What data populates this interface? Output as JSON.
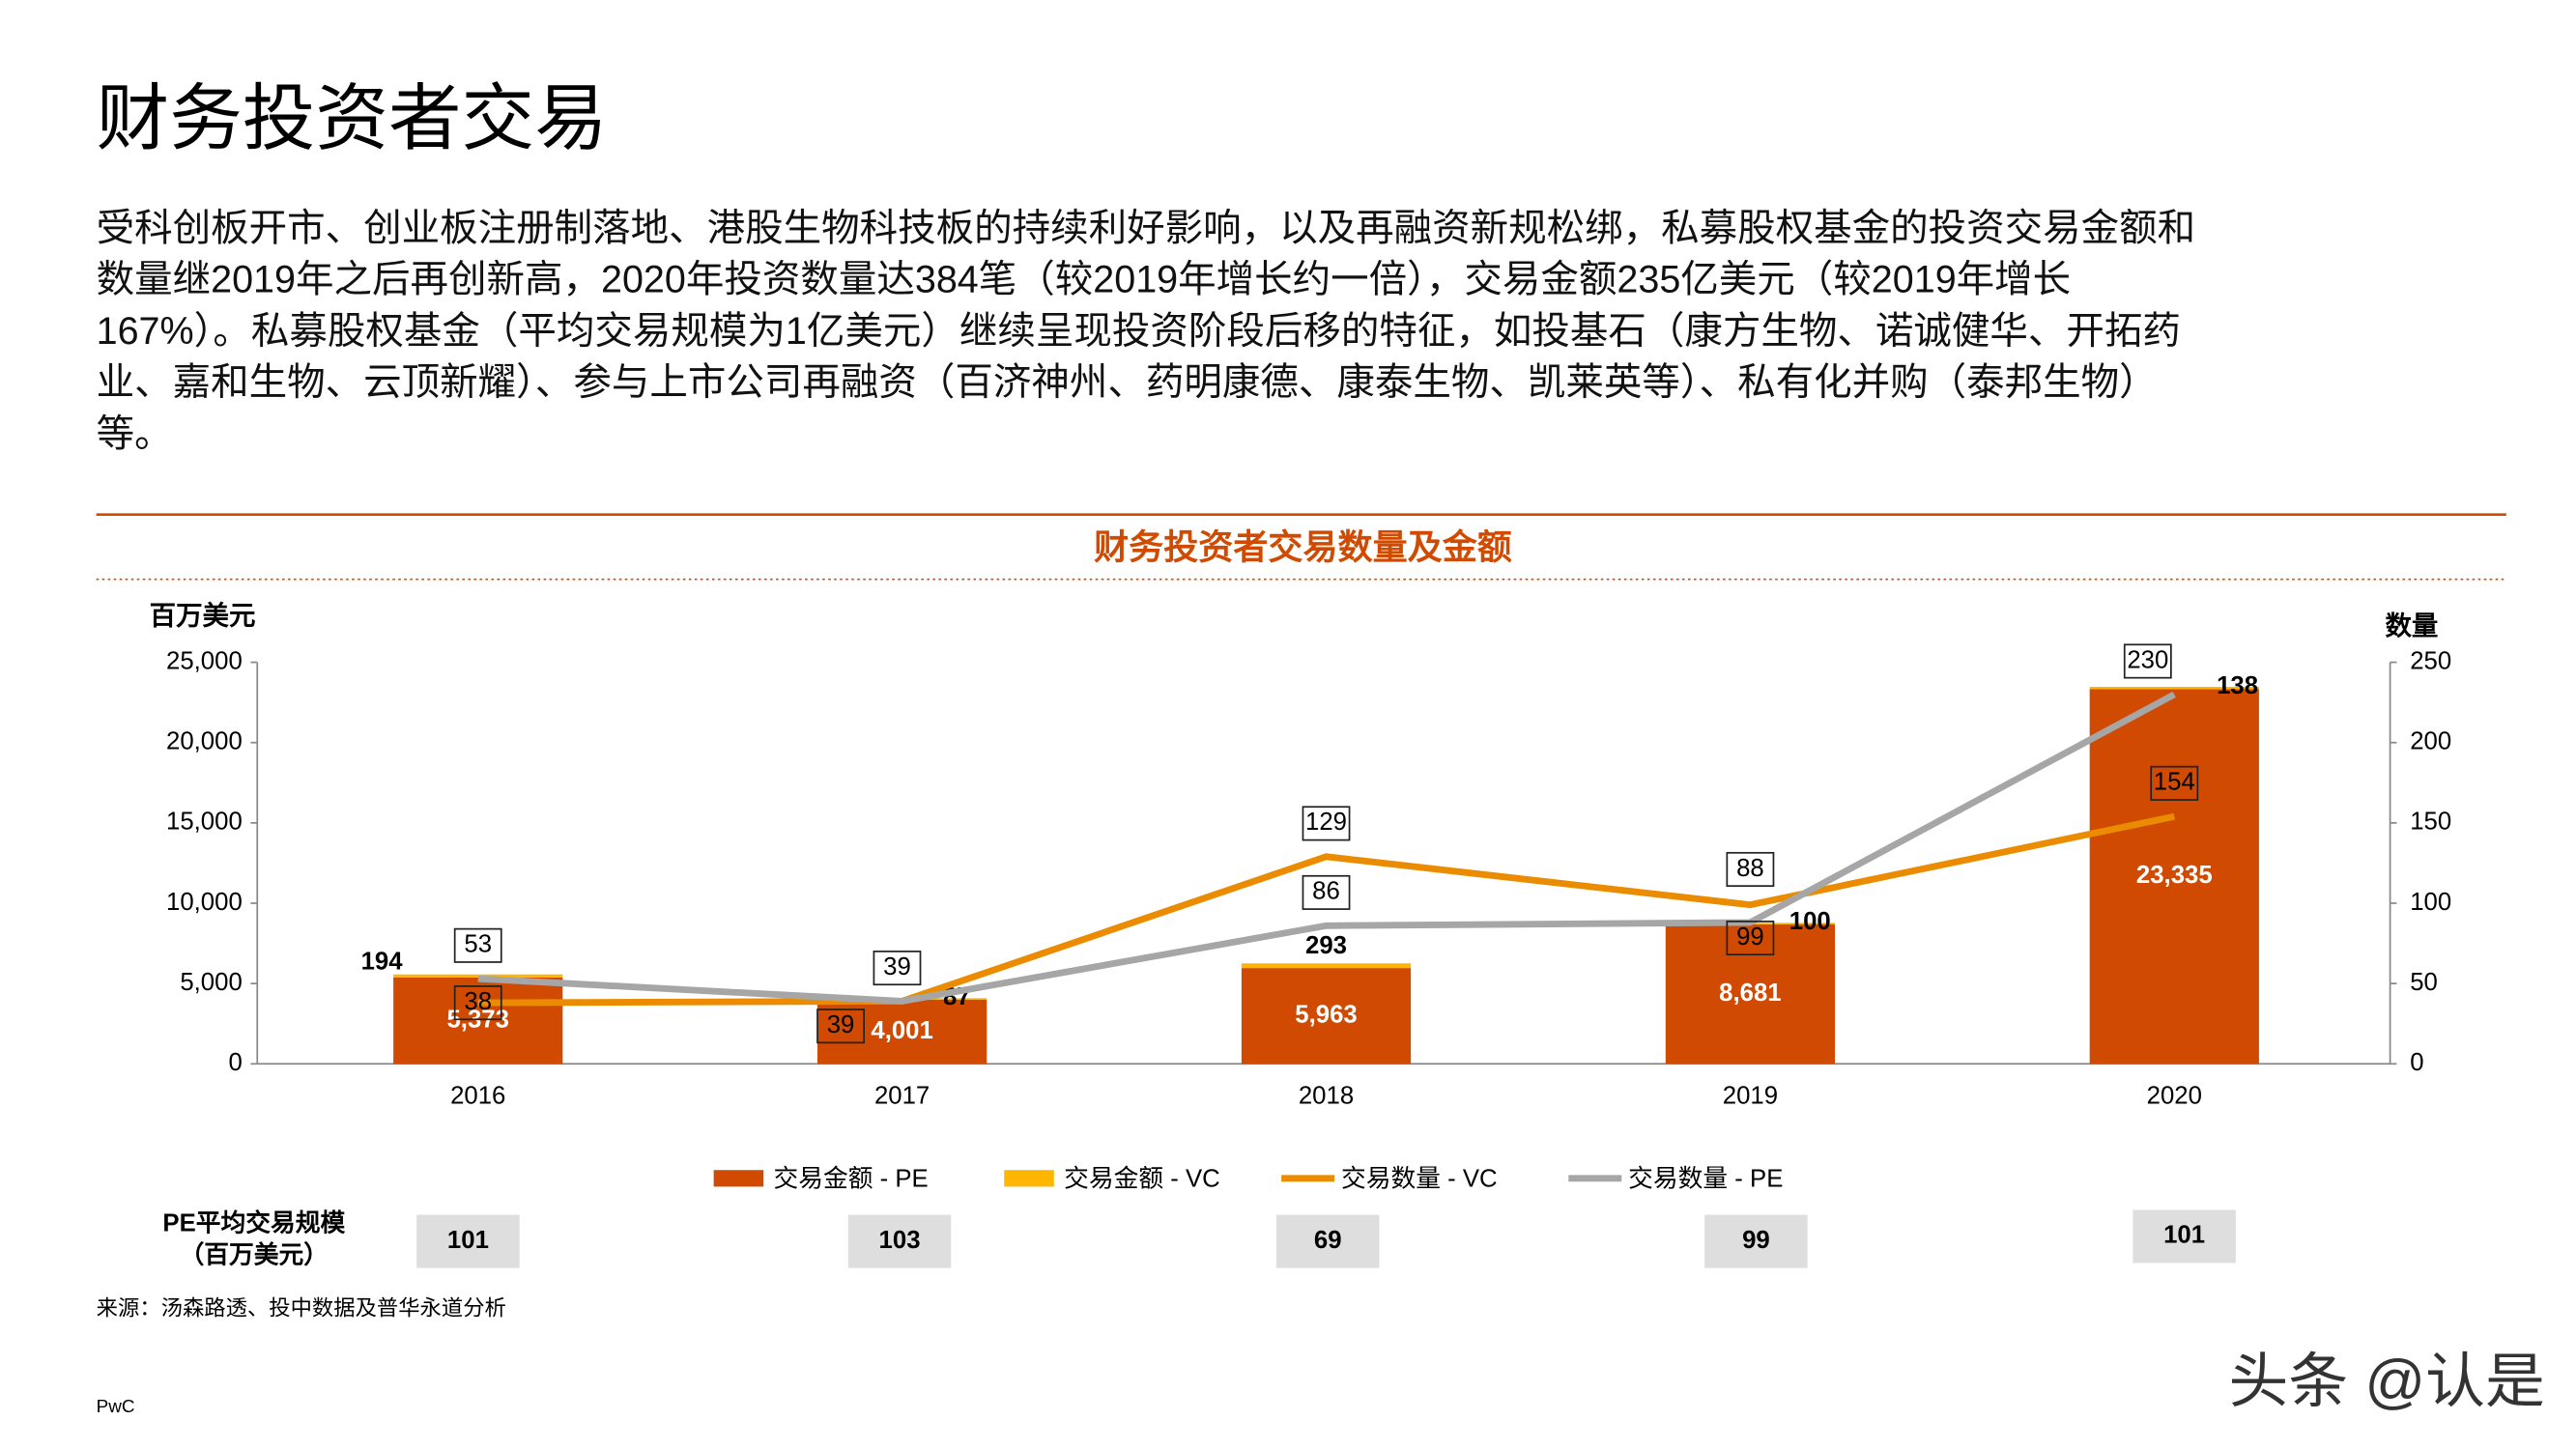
{
  "title": "财务投资者交易",
  "body_lines": [
    "受科创板开市、创业板注册制落地、港股生物科技板的持续利好影响，以及再融资新规松绑，私募股权基金的投资交易金额和",
    "数量继2019年之后再创新高，2020年投资数量达384笔（较2019年增长约一倍），交易金额235亿美元（较2019年增长",
    "167%）。私募股权基金（平均交易规模为1亿美元）继续呈现投资阶段后移的特征，如投基石（康方生物、诺诚健华、开拓药",
    "业、嘉和生物、云顶新耀）、参与上市公司再融资（百济神州、药明康德、康泰生物、凯莱英等）、私有化并购（泰邦生物）",
    "等。"
  ],
  "chart_data": {
    "type": "combo",
    "title": "财务投资者交易数量及金额",
    "y_label": "百万美元",
    "y2_label": "数量",
    "categories": [
      "2016",
      "2017",
      "2018",
      "2019",
      "2020"
    ],
    "series": [
      {
        "name": "交易金额 - PE",
        "type": "bar",
        "color": "#d04a02",
        "values": [
          5373,
          4001,
          5963,
          8681,
          23335
        ],
        "value_labels": [
          "5,373",
          "4,001",
          "5,963",
          "8,681",
          "23,335"
        ]
      },
      {
        "name": "交易金额 - VC",
        "type": "bar",
        "color": "#ffb600",
        "values": [
          194,
          87,
          293,
          100,
          138
        ]
      },
      {
        "name": "交易数量 - VC",
        "type": "line",
        "axis": "y2",
        "color": "#eb8c00",
        "values": [
          38,
          39,
          129,
          99,
          154
        ]
      },
      {
        "name": "交易数量 - PE",
        "type": "line",
        "axis": "y2",
        "color": "#a6a6a6",
        "values": [
          53,
          39,
          86,
          88,
          230
        ]
      }
    ],
    "ylim": [
      0,
      25000
    ],
    "yticks": [
      0,
      {
        "value": 5000,
        "label": "5,000"
      },
      {
        "value": 10000,
        "label": "10,000"
      },
      {
        "value": 15000,
        "label": "15,000"
      },
      {
        "value": 20000,
        "label": "20,000"
      },
      {
        "value": 25000,
        "label": "25,000"
      }
    ],
    "y2lim": [
      0,
      250
    ],
    "y2ticks": [
      0,
      50,
      100,
      150,
      200,
      250
    ]
  },
  "pe_average": {
    "label_lines": [
      "PE平均交易规模",
      "（百万美元）"
    ],
    "values": [
      101,
      103,
      69,
      99,
      101
    ]
  },
  "source": "来源：汤森路透、投中数据及普华永道分析",
  "footer": "PwC",
  "watermark": "头条 @认是"
}
